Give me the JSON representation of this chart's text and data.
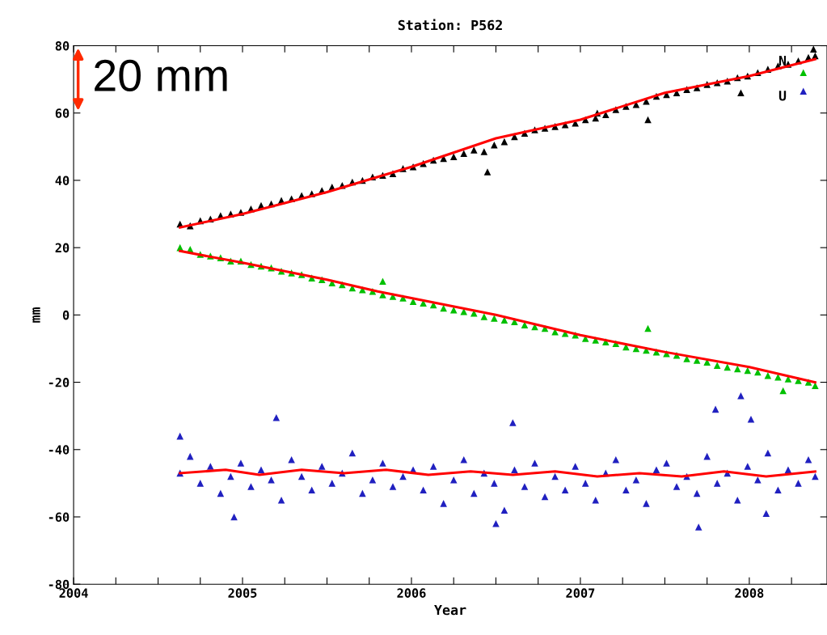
{
  "chart_data": {
    "type": "scatter",
    "title": "Station: P562",
    "xlabel": "Year",
    "ylabel": "mm",
    "xlim": [
      2004,
      2008.46
    ],
    "ylim": [
      -80,
      80
    ],
    "xticks": [
      2004,
      {
        "value": 2004.25,
        "label": null
      },
      {
        "value": 2004.5,
        "label": null
      },
      {
        "value": 2004.75,
        "label": null
      },
      2005,
      {
        "value": 2005.25,
        "label": null
      },
      {
        "value": 2005.5,
        "label": null
      },
      {
        "value": 2005.75,
        "label": null
      },
      2006,
      {
        "value": 2006.25,
        "label": null
      },
      {
        "value": 2006.5,
        "label": null
      },
      {
        "value": 2006.75,
        "label": null
      },
      2007,
      {
        "value": 2007.25,
        "label": null
      },
      {
        "value": 2007.5,
        "label": null
      },
      {
        "value": 2007.75,
        "label": null
      },
      2008,
      {
        "value": 2008.25,
        "label": null
      }
    ],
    "yticks": [
      -80,
      -60,
      -40,
      -20,
      0,
      20,
      40,
      60,
      80
    ],
    "marker": "triangle",
    "grid": false,
    "legend": false,
    "annotations": [
      "20 mm",
      "N",
      "U"
    ],
    "series": [
      {
        "color": "#000000",
        "x": [
          2004.63,
          2004.69,
          2004.75,
          2004.81,
          2004.87,
          2004.93,
          2004.99,
          2005.05,
          2005.11,
          2005.17,
          2005.23,
          2005.29,
          2005.35,
          2005.41,
          2005.47,
          2005.53,
          2005.59,
          2005.65,
          2005.71,
          2005.77,
          2005.83,
          2005.89,
          2005.95,
          2006.01,
          2006.07,
          2006.13,
          2006.19,
          2006.25,
          2006.31,
          2006.37,
          2006.43,
          2006.49,
          2006.55,
          2006.61,
          2006.67,
          2006.73,
          2006.79,
          2006.85,
          2006.91,
          2006.97,
          2007.03,
          2007.09,
          2007.15,
          2007.21,
          2007.27,
          2007.33,
          2007.39,
          2007.45,
          2007.51,
          2007.57,
          2007.63,
          2007.69,
          2007.75,
          2007.81,
          2007.87,
          2007.93,
          2007.99,
          2008.05,
          2008.11,
          2008.17,
          2008.23,
          2008.29,
          2008.35,
          2008.39,
          2006.45,
          2007.4,
          2007.95,
          2008.38,
          2007.1
        ],
        "values": [
          27,
          26.5,
          28,
          28.5,
          29.5,
          30,
          30.5,
          31.5,
          32.5,
          33,
          34,
          34.5,
          35.5,
          36,
          37,
          38,
          38.5,
          39.5,
          40,
          41,
          41.5,
          42,
          43.5,
          44,
          45,
          46,
          46.5,
          47,
          48,
          49,
          48.5,
          50.5,
          51.5,
          53,
          54,
          55,
          55.5,
          56,
          56.5,
          57,
          58,
          58.5,
          59.5,
          61,
          62,
          62.5,
          63.5,
          65,
          65.5,
          66,
          67,
          67.5,
          68.5,
          69,
          69.5,
          70.5,
          71,
          72,
          73,
          74,
          74.5,
          75.5,
          76.5,
          77,
          42.5,
          58,
          66,
          79,
          60
        ]
      },
      {
        "color": "#00c000",
        "x": [
          2004.63,
          2004.69,
          2004.75,
          2004.81,
          2004.87,
          2004.93,
          2004.99,
          2005.05,
          2005.11,
          2005.17,
          2005.23,
          2005.29,
          2005.35,
          2005.41,
          2005.47,
          2005.53,
          2005.59,
          2005.65,
          2005.71,
          2005.77,
          2005.83,
          2005.89,
          2005.95,
          2006.01,
          2006.07,
          2006.13,
          2006.19,
          2006.25,
          2006.31,
          2006.37,
          2006.43,
          2006.49,
          2006.55,
          2006.61,
          2006.67,
          2006.73,
          2006.79,
          2006.85,
          2006.91,
          2006.97,
          2007.03,
          2007.09,
          2007.15,
          2007.21,
          2007.27,
          2007.33,
          2007.39,
          2007.45,
          2007.51,
          2007.57,
          2007.63,
          2007.69,
          2007.75,
          2007.81,
          2007.87,
          2007.93,
          2007.99,
          2008.05,
          2008.11,
          2008.17,
          2008.23,
          2008.29,
          2008.35,
          2008.39,
          2005.83,
          2007.4,
          2008.2,
          2008.32
        ],
        "values": [
          20,
          19.5,
          18,
          17.5,
          17,
          16,
          16,
          15,
          14.5,
          14,
          13,
          12.5,
          12,
          11,
          10.5,
          9.5,
          9,
          8,
          7.5,
          7,
          6,
          5.5,
          5,
          4,
          3.5,
          3,
          2,
          1.5,
          1,
          0.5,
          -0.5,
          -1,
          -1.5,
          -2,
          -3,
          -3.5,
          -4,
          -5,
          -5.5,
          -6,
          -7,
          -7.5,
          -8,
          -8.5,
          -9.5,
          -10,
          -10.5,
          -11,
          -11.5,
          -12,
          -13,
          -13.5,
          -14,
          -15,
          -15.5,
          -16,
          -16.5,
          -17,
          -18,
          -18.5,
          -19,
          -19.5,
          -20,
          -21,
          10,
          -4,
          -22.5,
          72
        ]
      },
      {
        "color": "#2020c0",
        "x": [
          2004.63,
          2004.69,
          2004.75,
          2004.81,
          2004.87,
          2004.93,
          2004.99,
          2005.05,
          2005.11,
          2005.17,
          2005.23,
          2005.29,
          2005.35,
          2005.41,
          2005.47,
          2005.53,
          2005.59,
          2005.65,
          2005.71,
          2005.77,
          2005.83,
          2005.89,
          2005.95,
          2006.01,
          2006.07,
          2006.13,
          2006.19,
          2006.25,
          2006.31,
          2006.37,
          2006.43,
          2006.49,
          2006.55,
          2006.61,
          2006.67,
          2006.73,
          2006.79,
          2006.85,
          2006.91,
          2006.97,
          2007.03,
          2007.09,
          2007.15,
          2007.21,
          2007.27,
          2007.33,
          2007.39,
          2007.45,
          2007.51,
          2007.57,
          2007.63,
          2007.69,
          2007.75,
          2007.81,
          2007.87,
          2007.93,
          2007.99,
          2008.05,
          2008.11,
          2008.17,
          2008.23,
          2008.29,
          2008.35,
          2008.39,
          2004.63,
          2004.95,
          2005.2,
          2006.6,
          2006.5,
          2007.7,
          2007.8,
          2007.95,
          2008.01,
          2008.1,
          2008.32
        ],
        "values": [
          -47,
          -42,
          -50,
          -45,
          -53,
          -48,
          -44,
          -51,
          -46,
          -49,
          -55,
          -43,
          -48,
          -52,
          -45,
          -50,
          -47,
          -41,
          -53,
          -49,
          -44,
          -51,
          -48,
          -46,
          -52,
          -45,
          -56,
          -49,
          -43,
          -53,
          -47,
          -50,
          -58,
          -46,
          -51,
          -44,
          -54,
          -48,
          -52,
          -45,
          -50,
          -55,
          -47,
          -43,
          -52,
          -49,
          -56,
          -46,
          -44,
          -51,
          -48,
          -53,
          -42,
          -50,
          -47,
          -55,
          -45,
          -49,
          -41,
          -52,
          -46,
          -50,
          -43,
          -48,
          -36,
          -60,
          -30.5,
          -32,
          -62,
          -63,
          -28,
          -24,
          -31,
          -59,
          66.5
        ]
      },
      {
        "type": "line",
        "color": "#ff0000",
        "marker": "none",
        "x": [
          2004.63,
          2005.0,
          2005.5,
          2005.8,
          2006.0,
          2006.5,
          2007.0,
          2007.5,
          2008.0,
          2008.39
        ],
        "values": [
          26,
          30,
          36.5,
          41,
          44,
          52.5,
          58,
          66,
          71,
          76
        ]
      },
      {
        "type": "line",
        "color": "#ff0000",
        "marker": "none",
        "x": [
          2004.63,
          2005.0,
          2005.5,
          2005.8,
          2006.0,
          2006.5,
          2007.0,
          2007.5,
          2008.0,
          2008.39
        ],
        "values": [
          19,
          15.5,
          10.5,
          7,
          5,
          0,
          -6,
          -11,
          -15.5,
          -20
        ]
      },
      {
        "type": "line",
        "color": "#ff0000",
        "marker": "none",
        "x": [
          2004.63,
          2004.9,
          2005.1,
          2005.35,
          2005.6,
          2005.85,
          2006.1,
          2006.35,
          2006.6,
          2006.85,
          2007.1,
          2007.35,
          2007.6,
          2007.85,
          2008.1,
          2008.39
        ],
        "values": [
          -47,
          -46,
          -47.5,
          -46,
          -47,
          -46,
          -47.5,
          -46.5,
          -47.5,
          -46.5,
          -48,
          -47,
          -48,
          -46.5,
          -48,
          -46.5
        ]
      }
    ]
  }
}
